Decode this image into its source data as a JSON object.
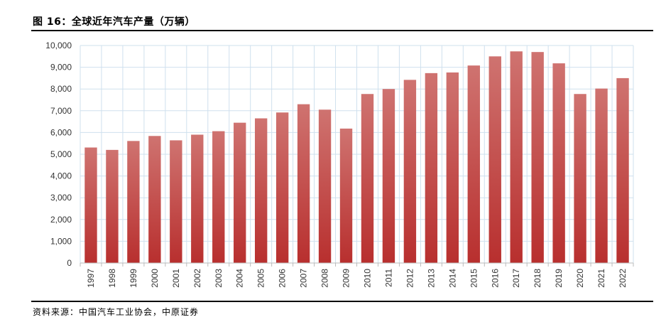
{
  "header": {
    "title": "图 16：全球近年汽车产量（万辆）"
  },
  "footer": {
    "source": "资料来源：中国汽车工业协会，中原证券"
  },
  "colors": {
    "bar_top": "#cf7370",
    "bar_bottom": "#b82f2e",
    "grid": "#cfe0ee",
    "axis": "#bbbbbb"
  },
  "chart_data": {
    "type": "bar",
    "title": "全球近年汽车产量（万辆）",
    "xlabel": "",
    "ylabel": "",
    "ylim": [
      0,
      10000
    ],
    "yticks": [
      0,
      1000,
      2000,
      3000,
      4000,
      5000,
      6000,
      7000,
      8000,
      9000,
      10000
    ],
    "ytick_labels": [
      "0",
      "1,000",
      "2,000",
      "3,000",
      "4,000",
      "5,000",
      "6,000",
      "7,000",
      "8,000",
      "9,000",
      "10,000"
    ],
    "grid": true,
    "categories": [
      "1997",
      "1998",
      "1999",
      "2000",
      "2001",
      "2002",
      "2003",
      "2004",
      "2005",
      "2006",
      "2007",
      "2008",
      "2009",
      "2010",
      "2011",
      "2012",
      "2013",
      "2014",
      "2015",
      "2016",
      "2017",
      "2018",
      "2019",
      "2020",
      "2021",
      "2022"
    ],
    "values": [
      5310,
      5200,
      5610,
      5840,
      5640,
      5900,
      6060,
      6450,
      6650,
      6920,
      7300,
      7050,
      6180,
      7770,
      8000,
      8420,
      8730,
      8760,
      9080,
      9500,
      9730,
      9700,
      9180,
      7770,
      8020,
      8500
    ]
  }
}
